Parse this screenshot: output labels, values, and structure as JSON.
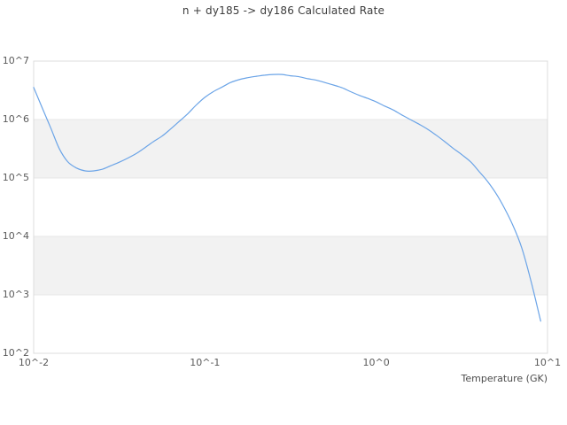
{
  "chart_data": {
    "type": "line",
    "title": "n + dy185 -> dy186 Calculated Rate",
    "xlabel": "Temperature (GK)",
    "ylabel": "",
    "x_scale": "log",
    "y_scale": "log",
    "xlim": [
      0.01,
      10
    ],
    "ylim": [
      100,
      10000000
    ],
    "x_ticks": [
      {
        "value": 0.01,
        "label": "10^-2"
      },
      {
        "value": 0.1,
        "label": "10^-1"
      },
      {
        "value": 1,
        "label": "10^0"
      },
      {
        "value": 10,
        "label": "10^1"
      }
    ],
    "y_ticks": [
      {
        "value": 100,
        "label": "10^2"
      },
      {
        "value": 1000,
        "label": "10^3"
      },
      {
        "value": 10000,
        "label": "10^4"
      },
      {
        "value": 100000,
        "label": "10^5"
      },
      {
        "value": 1000000,
        "label": "10^6"
      },
      {
        "value": 10000000,
        "label": "10^7"
      }
    ],
    "grid": "horizontal decade lines with alternating gray bands",
    "bands": [
      [
        100000,
        1000000
      ],
      [
        1000,
        10000
      ]
    ],
    "legend": "none",
    "series": [
      {
        "name": "calculated-rate",
        "color": "#6ba4e7",
        "x": [
          0.01,
          0.0112,
          0.0126,
          0.0141,
          0.0158,
          0.0178,
          0.02,
          0.0224,
          0.0251,
          0.0282,
          0.0316,
          0.0355,
          0.0398,
          0.0447,
          0.0501,
          0.0562,
          0.0631,
          0.0708,
          0.0794,
          0.0891,
          0.1,
          0.112,
          0.126,
          0.141,
          0.158,
          0.178,
          0.2,
          0.224,
          0.251,
          0.282,
          0.316,
          0.355,
          0.398,
          0.447,
          0.501,
          0.562,
          0.631,
          0.708,
          0.794,
          0.891,
          1.0,
          1.12,
          1.26,
          1.41,
          1.58,
          1.78,
          2.0,
          2.24,
          2.51,
          2.82,
          3.16,
          3.55,
          3.98,
          4.47,
          5.01,
          5.62,
          6.31,
          7.08,
          7.94,
          8.51,
          9.12
        ],
        "y": [
          3550000.0,
          1600000.0,
          710000.0,
          320000.0,
          190000.0,
          148000.0,
          132000.0,
          132000.0,
          141000.0,
          162000.0,
          186000.0,
          219000.0,
          263000.0,
          331000.0,
          420000.0,
          520000.0,
          690000.0,
          930000.0,
          1260000.0,
          1780000.0,
          2400000.0,
          3000000.0,
          3600000.0,
          4300000.0,
          4800000.0,
          5200000.0,
          5500000.0,
          5750000.0,
          5900000.0,
          5900000.0,
          5600000.0,
          5400000.0,
          5000000.0,
          4700000.0,
          4300000.0,
          3900000.0,
          3500000.0,
          3000000.0,
          2600000.0,
          2300000.0,
          2000000.0,
          1700000.0,
          1450000.0,
          1200000.0,
          1000000.0,
          830000.0,
          680000.0,
          540000.0,
          420000.0,
          320000.0,
          250000.0,
          190000.0,
          130000.0,
          87000.0,
          54000.0,
          30000.0,
          15000.0,
          6300.0,
          1900.0,
          830.0,
          355.0
        ]
      }
    ]
  },
  "colors": {
    "line": "#6ba4e7",
    "band_fill": "#f2f2f2",
    "gridline": "#e7e7e7",
    "frame": "#dcdcdc",
    "title_text": "#3c3c3c",
    "tick_text": "#5a5a5a"
  }
}
